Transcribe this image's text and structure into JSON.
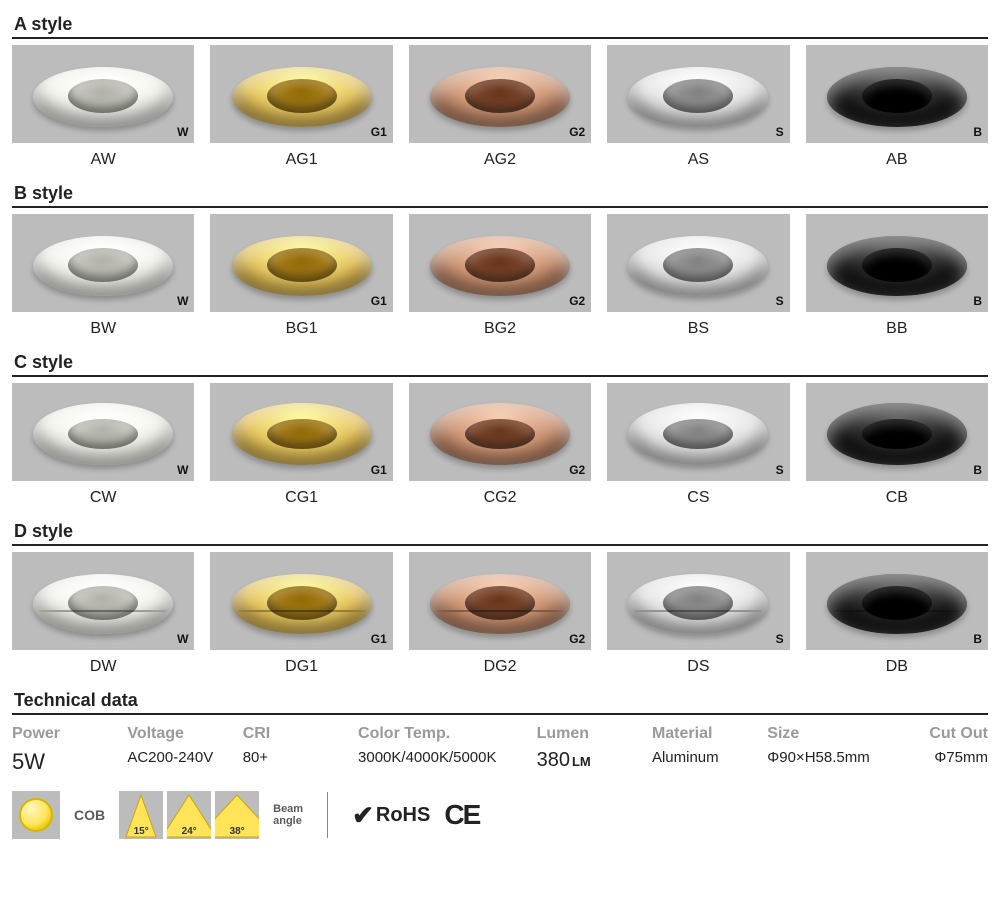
{
  "finishes": [
    {
      "tag": "W",
      "outer": "#f5f5ef",
      "shade": "#d8d8d0"
    },
    {
      "tag": "G1",
      "outer": "#e8c45a",
      "shade": "#b8902c"
    },
    {
      "tag": "G2",
      "outer": "#c98f6e",
      "shade": "#8f5a40"
    },
    {
      "tag": "S",
      "outer": "#e6e6e6",
      "shade": "#a8a8a8"
    },
    {
      "tag": "B",
      "outer": "#1a1a1a",
      "shade": "#000000"
    }
  ],
  "styles": [
    {
      "title": "A style",
      "prefix": "A",
      "shape": "flange",
      "codes": [
        "AW",
        "AG1",
        "AG2",
        "AS",
        "AB"
      ]
    },
    {
      "title": "B style",
      "prefix": "B",
      "shape": "flange",
      "codes": [
        "BW",
        "BG1",
        "BG2",
        "BS",
        "BB"
      ]
    },
    {
      "title": "C style",
      "prefix": "C",
      "shape": "torus",
      "codes": [
        "CW",
        "CG1",
        "CG2",
        "CS",
        "CB"
      ]
    },
    {
      "title": "D style",
      "prefix": "D",
      "shape": "groove",
      "codes": [
        "DW",
        "DG1",
        "DG2",
        "DS",
        "DB"
      ]
    }
  ],
  "tech_title": "Technical data",
  "tech": {
    "power": {
      "label": "Power",
      "value": "5W"
    },
    "voltage": {
      "label": "Voltage",
      "value": "AC200-240V"
    },
    "cri": {
      "label": "CRI",
      "value": "80+"
    },
    "colortemp": {
      "label": "Color Temp.",
      "value": "3000K/4000K/5000K"
    },
    "lumen": {
      "label": "Lumen",
      "value_num": "380",
      "value_unit": "LM"
    },
    "material": {
      "label": "Material",
      "value": "Aluminum"
    },
    "size": {
      "label": "Size",
      "value": "Φ90×H58.5mm"
    },
    "cutout": {
      "label": "Cut Out",
      "value": "Φ75mm"
    }
  },
  "icons": {
    "cob_label": "COB",
    "beam_angles": [
      "15°",
      "24°",
      "38°"
    ],
    "beam_label_line1": "Beam",
    "beam_label_line2": "angle",
    "rohs": "RoHS",
    "ce": "CE"
  },
  "layout": {
    "swatch_bg": "#bcbcbc",
    "page_bg": "#ffffff",
    "rule_color": "#222222",
    "tech_label_color": "#9a9a9a"
  }
}
